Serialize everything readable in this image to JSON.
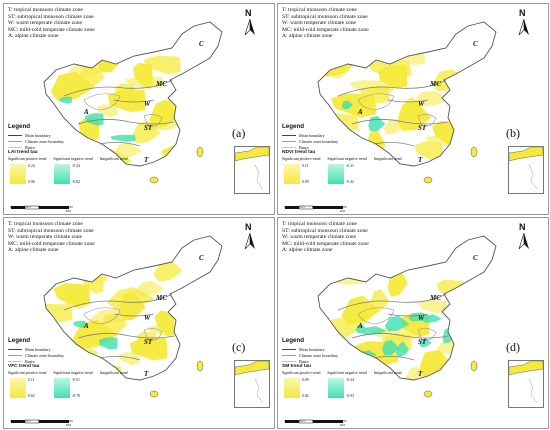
{
  "zones": [
    "T: tropical monsoon climate zone",
    "ST: subtropical monsoon climate zone",
    "W: warm temperate climate zone",
    "MC: mild-cold temperate climate zone",
    "A: alpine climate zone"
  ],
  "legend": {
    "title": "Legend",
    "items": [
      "Main boundary",
      "Climate zone boundary",
      "Basin"
    ]
  },
  "sig_labels": {
    "pos": "Significant positive trend",
    "neg": "Significant negative trend",
    "insig": "Insignificant trend"
  },
  "zone_letters": [
    "C",
    "MC",
    "W",
    "A",
    "ST",
    "T"
  ],
  "scale": {
    "ticks": [
      "0",
      "412.5",
      "825",
      "1,650 KM"
    ]
  },
  "north_letter": "N",
  "colors": {
    "positive": "#f5e93a",
    "negative": "#3fe0b0",
    "boundary": "#808080"
  },
  "panels": [
    {
      "label": "(a)",
      "trend_title": "LAI trend tau",
      "pos_high": "0.24",
      "pos_low": "0.96",
      "neg_high": "-0.24",
      "neg_low": "-0.82",
      "neg_level": 0.12,
      "pos_level": 0.55
    },
    {
      "label": "(b)",
      "trend_title": "NDVI trend tau",
      "pos_high": "0.11",
      "pos_low": "0.89",
      "neg_high": "-0.31",
      "neg_low": "-0.42",
      "neg_level": 0.06,
      "pos_level": 0.5
    },
    {
      "label": "(c)",
      "trend_title": "VFC trend tau",
      "pos_high": "0.11",
      "pos_low": "0.62",
      "neg_high": "-0.51",
      "neg_low": "-0.78",
      "neg_level": 0.1,
      "pos_level": 0.55
    },
    {
      "label": "(d)",
      "trend_title": "SM trend tau",
      "pos_high": "0.09",
      "pos_low": "0.82",
      "neg_high": "-0.34",
      "neg_low": "-0.93",
      "neg_level": 0.45,
      "pos_level": 0.3
    }
  ]
}
